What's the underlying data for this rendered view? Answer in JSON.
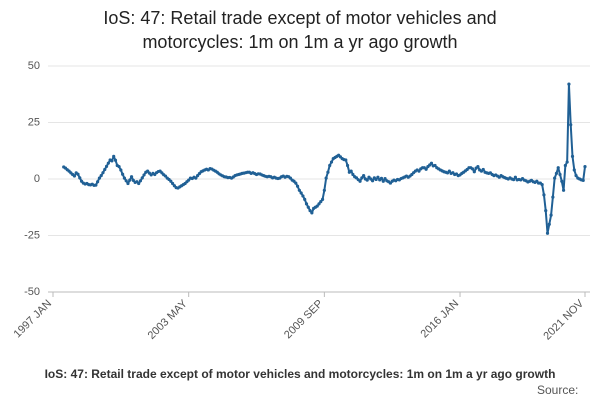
{
  "chart_data": {
    "type": "line",
    "title": "IoS: 47: Retail trade except of motor vehicles and motorcycles: 1m on 1m a yr ago growth",
    "source": "Source:",
    "categories": [
      "1997 JAN",
      null,
      null,
      null,
      null,
      null,
      null,
      null,
      null,
      null,
      null,
      null,
      null,
      null,
      null,
      null,
      null,
      null,
      null,
      null,
      null,
      null,
      null,
      null,
      null,
      null,
      null,
      null,
      null,
      null,
      null,
      null,
      null,
      null,
      null,
      null,
      null,
      null,
      null,
      null,
      null,
      null,
      null,
      null,
      null,
      null,
      null,
      null,
      null,
      null,
      null,
      null,
      null,
      null,
      null,
      null,
      null,
      null,
      null,
      null,
      null,
      null,
      null,
      null,
      null,
      null,
      null,
      null,
      null,
      null,
      null,
      null,
      null,
      null,
      null,
      null,
      "2003 MAY",
      null,
      null,
      null,
      null,
      null,
      null,
      null,
      null,
      null,
      null,
      null,
      null,
      null,
      null,
      null,
      null,
      null,
      null,
      null,
      null,
      null,
      null,
      null,
      null,
      null,
      null,
      null,
      null,
      null,
      null,
      null,
      null,
      null,
      null,
      null,
      null,
      null,
      null,
      null,
      null,
      null,
      null,
      null,
      null,
      null,
      null,
      null,
      null,
      null,
      null,
      null,
      null,
      null,
      null,
      null,
      null,
      null,
      null,
      null,
      null,
      null,
      null,
      null,
      null,
      null,
      null,
      null,
      null,
      null,
      null,
      null,
      null,
      null,
      null,
      null,
      "2009 SEP",
      null,
      null,
      null,
      null,
      null,
      null,
      null,
      null,
      null,
      null,
      null,
      null,
      null,
      null,
      null,
      null,
      null,
      null,
      null,
      null,
      null,
      null,
      null,
      null,
      null,
      null,
      null,
      null,
      null,
      null,
      null,
      null,
      null,
      null,
      null,
      null,
      null,
      null,
      null,
      null,
      null,
      null,
      null,
      null,
      null,
      null,
      null,
      null,
      null,
      null,
      null,
      null,
      null,
      null,
      null,
      null,
      null,
      null,
      null,
      null,
      null,
      null,
      null,
      null,
      null,
      null,
      null,
      null,
      null,
      null,
      null,
      null,
      null,
      null,
      null,
      "2016 JAN",
      null,
      null,
      null,
      null,
      null,
      null,
      null,
      null,
      null,
      null,
      null,
      null,
      null,
      null,
      null,
      null,
      null,
      null,
      null,
      null,
      null,
      null,
      null,
      null,
      null,
      null,
      null,
      null,
      null,
      null,
      null,
      null,
      null,
      null,
      null,
      null,
      null,
      null,
      null,
      null,
      null,
      null,
      null,
      null,
      null,
      null,
      null,
      null,
      null,
      null,
      null,
      null,
      null,
      null,
      null,
      null,
      null,
      null,
      null,
      null,
      null,
      null,
      null,
      null,
      null,
      null,
      null,
      null,
      null,
      "2021 NOV"
    ],
    "series": [
      {
        "name": "IoS: 47",
        "color": "#206095",
        "values": [
          null,
          null,
          null,
          null,
          null,
          null,
          5.3,
          4.8,
          4.1,
          3.5,
          2.7,
          2.0,
          1.3,
          2.7,
          2.1,
          0.5,
          -1.0,
          -1.8,
          -2.2,
          -2.0,
          -2.5,
          -2.6,
          -2.3,
          -2.8,
          -2.7,
          -1.2,
          0.4,
          1.5,
          2.8,
          4.2,
          5.6,
          7.0,
          8.4,
          8.0,
          10.0,
          8.3,
          6.0,
          5.5,
          4.0,
          2.1,
          0.4,
          -0.8,
          -2.0,
          -0.5,
          1.0,
          -0.6,
          -1.5,
          -1.2,
          -2.0,
          -0.8,
          0.5,
          1.8,
          3.0,
          3.5,
          2.6,
          1.8,
          2.5,
          2.0,
          2.8,
          3.3,
          3.5,
          2.7,
          1.9,
          1.3,
          0.4,
          -0.2,
          -1.0,
          -2.0,
          -3.0,
          -3.8,
          -4.0,
          -3.5,
          -3.0,
          -2.5,
          -2.0,
          -1.2,
          -0.5,
          0.4,
          0.2,
          0.8,
          0.4,
          1.5,
          2.4,
          3.2,
          3.6,
          4.0,
          4.3,
          4.0,
          4.6,
          4.4,
          3.9,
          3.5,
          3.0,
          2.3,
          1.8,
          1.4,
          1.0,
          0.9,
          0.6,
          0.7,
          0.4,
          0.9,
          1.5,
          1.8,
          2.0,
          2.2,
          2.5,
          2.6,
          2.8,
          3.0,
          3.0,
          2.5,
          2.8,
          2.4,
          2.0,
          2.3,
          2.2,
          1.8,
          1.5,
          1.2,
          1.0,
          1.2,
          1.0,
          0.5,
          0.8,
          0.4,
          0.2,
          0.4,
          1.0,
          1.3,
          0.8,
          1.2,
          1.0,
          0.4,
          -0.5,
          -1.0,
          -1.8,
          -3.2,
          -5.0,
          -6.2,
          -7.5,
          -9.0,
          -11.0,
          -12.5,
          -14.0,
          -15.0,
          -13.0,
          -12.5,
          -12.0,
          -11.0,
          -10.0,
          -9.0,
          -5.0,
          0.4,
          3.0,
          6.0,
          7.5,
          9.0,
          9.5,
          10.0,
          10.5,
          9.8,
          9.0,
          8.6,
          8.4,
          6.0,
          3.0,
          3.5,
          2.0,
          1.0,
          0.5,
          -0.3,
          -1.0,
          0.5,
          1.5,
          0.0,
          -0.5,
          0.8,
          0.0,
          -0.8,
          0.5,
          -0.2,
          0.8,
          -0.4,
          0.3,
          -1.0,
          0.2,
          -0.8,
          -1.2,
          -1.8,
          -1.0,
          -0.5,
          -0.8,
          -0.2,
          -0.4,
          0.2,
          0.5,
          0.9,
          1.3,
          0.8,
          1.3,
          2.0,
          2.8,
          3.5,
          4.0,
          3.5,
          4.5,
          5.0,
          5.0,
          4.3,
          5.5,
          6.2,
          7.0,
          5.8,
          6.0,
          5.0,
          4.5,
          4.0,
          3.6,
          3.2,
          3.0,
          2.7,
          3.5,
          2.5,
          2.8,
          2.0,
          2.2,
          1.5,
          1.8,
          2.5,
          3.0,
          3.6,
          4.2,
          5.0,
          5.0,
          4.5,
          3.2,
          4.8,
          5.5,
          4.0,
          3.5,
          4.2,
          3.0,
          2.7,
          2.5,
          2.7,
          2.0,
          1.5,
          1.8,
          1.3,
          0.8,
          1.5,
          1.0,
          0.6,
          0.3,
          0.0,
          0.5,
          0.0,
          -0.3,
          0.8,
          -0.4,
          -0.2,
          -0.4,
          0.2,
          -0.5,
          -0.8,
          -1.3,
          -1.0,
          -0.6,
          -1.2,
          -1.5,
          -1.0,
          -1.8,
          -1.8,
          -2.5,
          -7.0,
          -14.0,
          -24.0,
          -20.0,
          -16.0,
          -8.0,
          0.4,
          2.5,
          5.0,
          2.0,
          -1.0,
          -5.0,
          6.0,
          7.5,
          42.0,
          24.0,
          10.0,
          4.0,
          1.5,
          0.4,
          0.0,
          -0.4,
          -0.6,
          5.5
        ]
      }
    ],
    "ylim": [
      -50,
      50
    ],
    "yticks": [
      -50,
      -25,
      0,
      25,
      50
    ],
    "grid": true
  }
}
